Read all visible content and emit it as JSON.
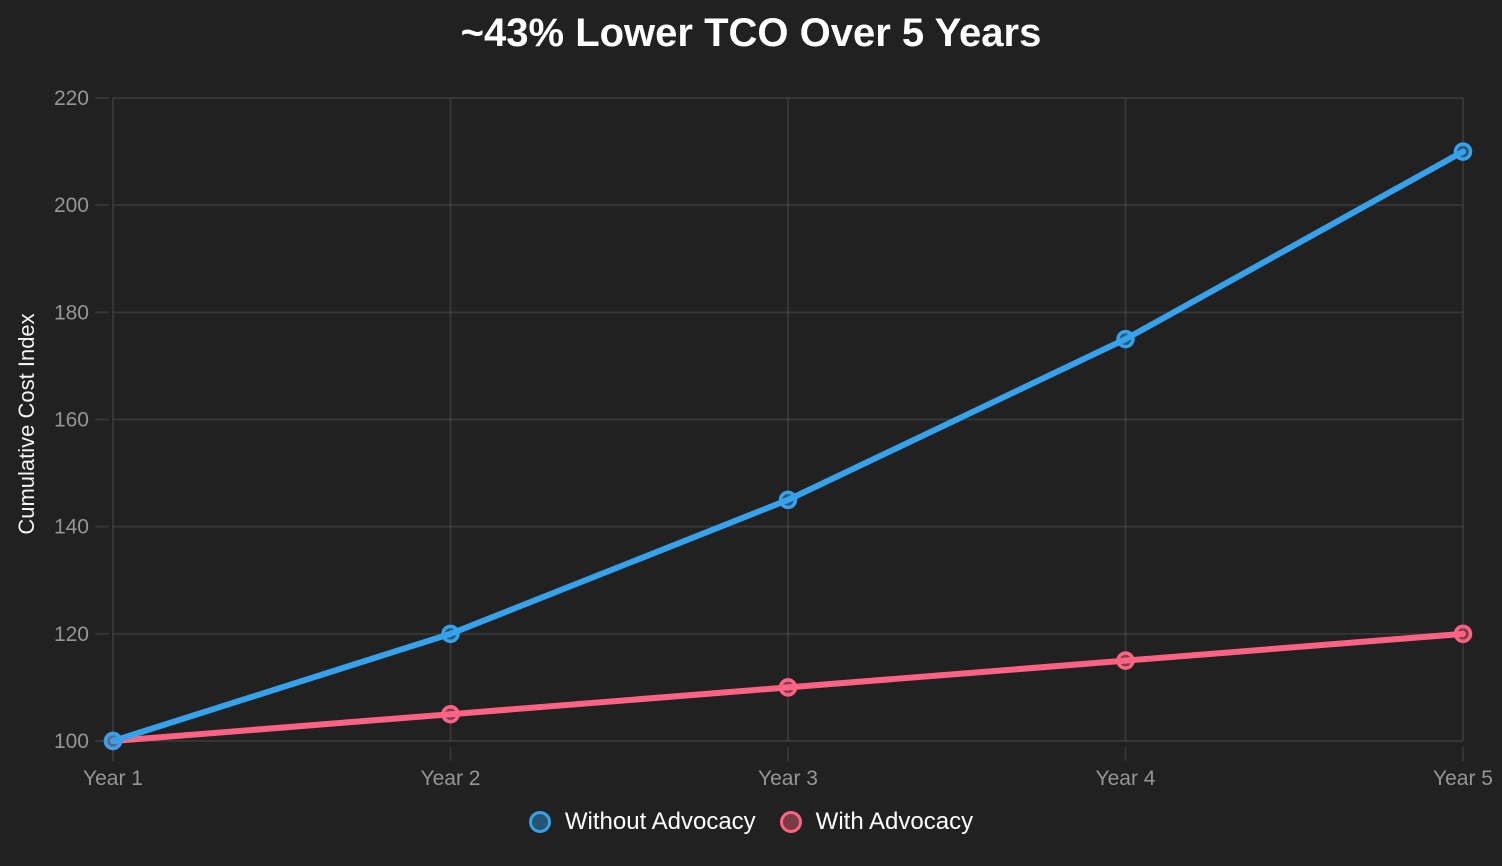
{
  "colors": {
    "background": "#212121",
    "grid": "rgba(255,255,255,0.09)",
    "tick_label": "#969696",
    "title": "#ffffff",
    "axis_title": "#f5f5f5",
    "legend_text": "#ffffff"
  },
  "chart_data": {
    "type": "line",
    "title": "~43% Lower TCO Over 5 Years",
    "ylabel": "Cumulative Cost Index",
    "xlabel": "",
    "categories": [
      "Year 1",
      "Year 2",
      "Year 3",
      "Year 4",
      "Year 5"
    ],
    "series": [
      {
        "name": "Without Advocacy",
        "color": "#36A2EB",
        "values": [
          100,
          120,
          145,
          175,
          210
        ]
      },
      {
        "name": "With Advocacy",
        "color": "#FF6384",
        "values": [
          100,
          105,
          110,
          115,
          120
        ]
      }
    ],
    "ylim": [
      100,
      220
    ],
    "yticks": [
      100,
      120,
      140,
      160,
      180,
      200,
      220
    ],
    "grid": true,
    "legend_position": "bottom"
  }
}
